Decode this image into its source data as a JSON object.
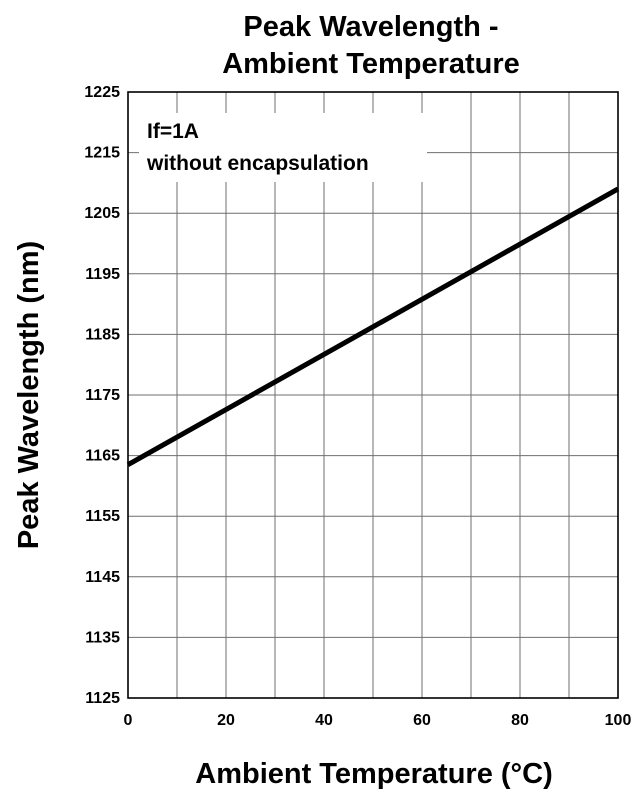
{
  "chart_data": {
    "type": "line",
    "title_lines": [
      "Peak Wavelength -",
      "Ambient Temperature"
    ],
    "xlabel": "Ambient Temperature (°C)",
    "ylabel": "Peak Wavelength (nm)",
    "xlim": [
      0,
      100
    ],
    "ylim": [
      1125,
      1225
    ],
    "x_ticks": [
      "0",
      "20",
      "40",
      "60",
      "80",
      "100"
    ],
    "y_ticks": [
      "1225",
      "1215",
      "1205",
      "1195",
      "1185",
      "1175",
      "1165",
      "1155",
      "1145",
      "1135",
      "1125"
    ],
    "annotation_lines": [
      "If=1A",
      "without encapsulation"
    ],
    "grid": true,
    "series": [
      {
        "x": [
          0,
          100
        ],
        "y": [
          1163.5,
          1209
        ],
        "color": "#000000"
      }
    ]
  }
}
